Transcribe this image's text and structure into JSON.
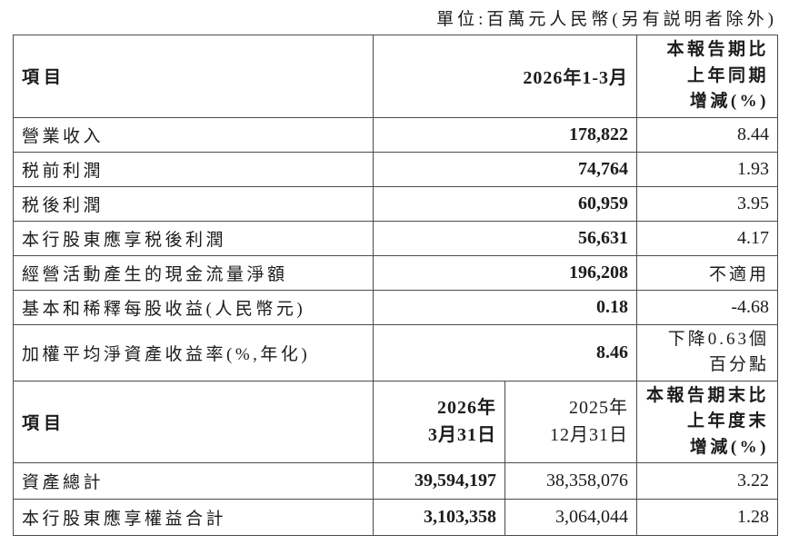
{
  "unit_note": "單位:百萬元人民幣(另有説明者除外)",
  "colors": {
    "text": "#1c1c1c",
    "border": "#4b4b4b",
    "background": "#ffffff"
  },
  "section1": {
    "header": {
      "item": "項目",
      "period": "2026年1-3月",
      "change": "本報告期比\n上年同期\n增減(%)"
    },
    "rows": [
      {
        "label": "營業收入",
        "value": "178,822",
        "change": "8.44"
      },
      {
        "label": "税前利潤",
        "value": "74,764",
        "change": "1.93"
      },
      {
        "label": "税後利潤",
        "value": "60,959",
        "change": "3.95"
      },
      {
        "label": "本行股東應享税後利潤",
        "value": "56,631",
        "change": "4.17"
      },
      {
        "label": "經營活動產生的現金流量淨額",
        "value": "196,208",
        "change": "不適用"
      },
      {
        "label": "基本和稀釋每股收益(人民幣元)",
        "value": "0.18",
        "change": "-4.68"
      },
      {
        "label": "加權平均淨資產收益率(%,年化)",
        "value": "8.46",
        "change": "下降0.63個\n百分點"
      }
    ]
  },
  "section2": {
    "header": {
      "item": "項目",
      "date_current": "2026年\n3月31日",
      "date_prior": "2025年\n12月31日",
      "change": "本報告期末比\n上年度末\n增減(%)"
    },
    "rows": [
      {
        "label": "資產總計",
        "value_current": "39,594,197",
        "value_prior": "38,358,076",
        "change": "3.22"
      },
      {
        "label": "本行股東應享權益合計",
        "value_current": "3,103,358",
        "value_prior": "3,064,044",
        "change": "1.28"
      }
    ]
  }
}
